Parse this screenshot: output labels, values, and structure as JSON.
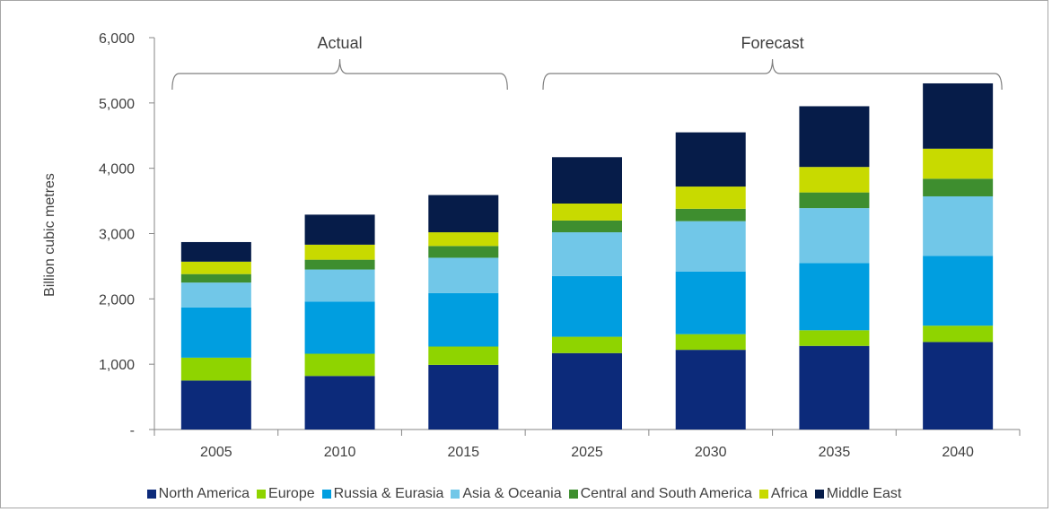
{
  "chart_data": {
    "type": "bar",
    "stacked": true,
    "title": "",
    "xlabel": "",
    "ylabel": "Billion cubic metres",
    "ylim": [
      0,
      6000
    ],
    "yticks": [
      0,
      1000,
      2000,
      3000,
      4000,
      5000,
      6000
    ],
    "ytick_labels": [
      "-",
      "1,000",
      "2,000",
      "3,000",
      "4,000",
      "5,000",
      "6,000"
    ],
    "categories": [
      "2005",
      "2010",
      "2015",
      "2025",
      "2030",
      "2035",
      "2040"
    ],
    "series": [
      {
        "name": "North America",
        "color": "#0c2a7a",
        "values": [
          750,
          820,
          990,
          1170,
          1220,
          1280,
          1340
        ]
      },
      {
        "name": "Europe",
        "color": "#8fd400",
        "values": [
          350,
          340,
          280,
          250,
          240,
          240,
          250
        ]
      },
      {
        "name": "Russia & Eurasia",
        "color": "#009ee0",
        "values": [
          770,
          800,
          820,
          930,
          960,
          1030,
          1070
        ]
      },
      {
        "name": "Asia & Oceania",
        "color": "#71c7e8",
        "values": [
          380,
          490,
          540,
          670,
          770,
          840,
          910
        ]
      },
      {
        "name": "Central and South America",
        "color": "#3e8e2f",
        "values": [
          130,
          150,
          180,
          180,
          190,
          240,
          270
        ]
      },
      {
        "name": "Africa",
        "color": "#c8da00",
        "values": [
          190,
          230,
          210,
          260,
          340,
          390,
          460
        ]
      },
      {
        "name": "Middle East",
        "color": "#061c49",
        "values": [
          300,
          460,
          570,
          710,
          830,
          930,
          1000
        ]
      }
    ],
    "legend_position": "bottom",
    "annotations": [
      {
        "label": "Actual",
        "from": "2005",
        "to": "2015"
      },
      {
        "label": "Forecast",
        "from": "2025",
        "to": "2040"
      }
    ]
  }
}
